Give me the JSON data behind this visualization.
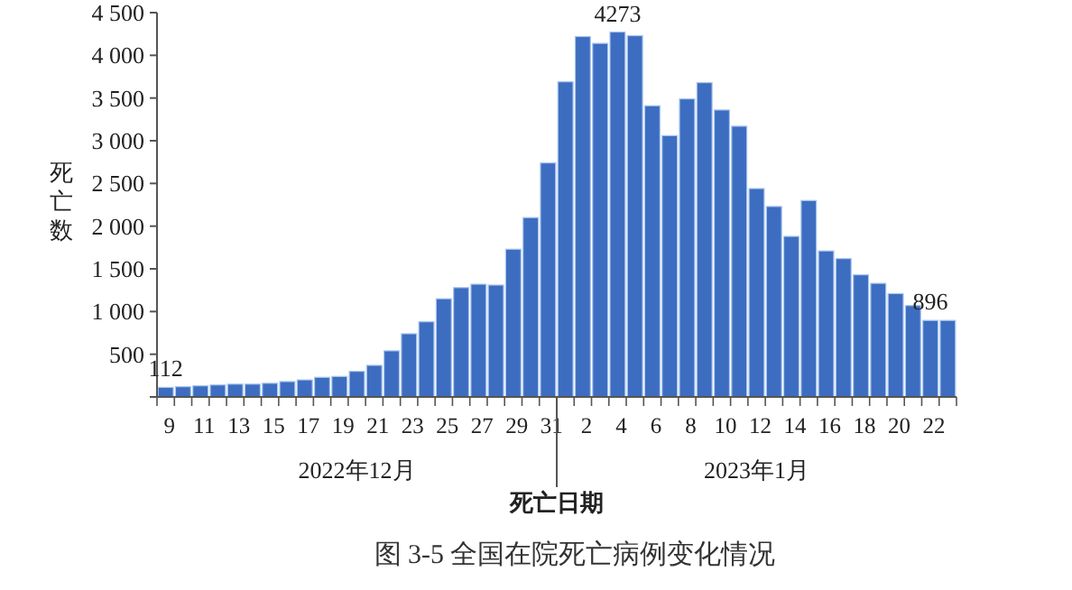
{
  "chart_data": {
    "type": "bar",
    "title": "图 3-5 全国在院死亡病例变化情况",
    "xlabel": "死亡日期",
    "ylabel": "死亡数",
    "annotations": [
      "2022年12月",
      "2023年1月"
    ],
    "categories": [
      "9",
      null,
      "11",
      null,
      "13",
      null,
      "15",
      null,
      "17",
      null,
      "19",
      null,
      "21",
      null,
      "23",
      null,
      "25",
      null,
      "27",
      null,
      "29",
      null,
      "31",
      null,
      "2",
      null,
      "4",
      null,
      "6",
      null,
      "8",
      null,
      "10",
      null,
      "12",
      null,
      "14",
      null,
      "16",
      null,
      "18",
      null,
      "20",
      null,
      "22",
      null
    ],
    "values": [
      112,
      120,
      130,
      140,
      150,
      150,
      160,
      180,
      200,
      230,
      240,
      300,
      370,
      540,
      740,
      880,
      1150,
      1280,
      1320,
      1310,
      1730,
      2100,
      2740,
      3690,
      4220,
      4140,
      4273,
      4230,
      3410,
      3060,
      3490,
      3680,
      3360,
      3170,
      2440,
      2230,
      1880,
      2300,
      1710,
      1620,
      1430,
      1330,
      1210,
      1070,
      896,
      896
    ],
    "value_labels": [
      "112",
      null,
      null,
      null,
      null,
      null,
      null,
      null,
      null,
      null,
      null,
      null,
      null,
      null,
      null,
      null,
      null,
      null,
      null,
      null,
      null,
      null,
      null,
      null,
      null,
      null,
      "4273",
      null,
      null,
      null,
      null,
      null,
      null,
      null,
      null,
      null,
      null,
      null,
      null,
      null,
      null,
      null,
      null,
      null,
      "896",
      null
    ],
    "color": "#3d6dc0",
    "ylim": [
      0,
      4500
    ],
    "yticks": [
      {
        "value": 0,
        "label": null
      },
      {
        "value": 500,
        "label": "500"
      },
      {
        "value": 1000,
        "label": "1 000"
      },
      {
        "value": 1500,
        "label": "1 500"
      },
      {
        "value": 2000,
        "label": "2 000"
      },
      {
        "value": 2500,
        "label": "2 500"
      },
      {
        "value": 3000,
        "label": "3 000"
      },
      {
        "value": 3500,
        "label": "3 500"
      },
      {
        "value": 4000,
        "label": "4 000"
      },
      {
        "value": 4500,
        "label": "4 500"
      }
    ],
    "grid": false
  }
}
